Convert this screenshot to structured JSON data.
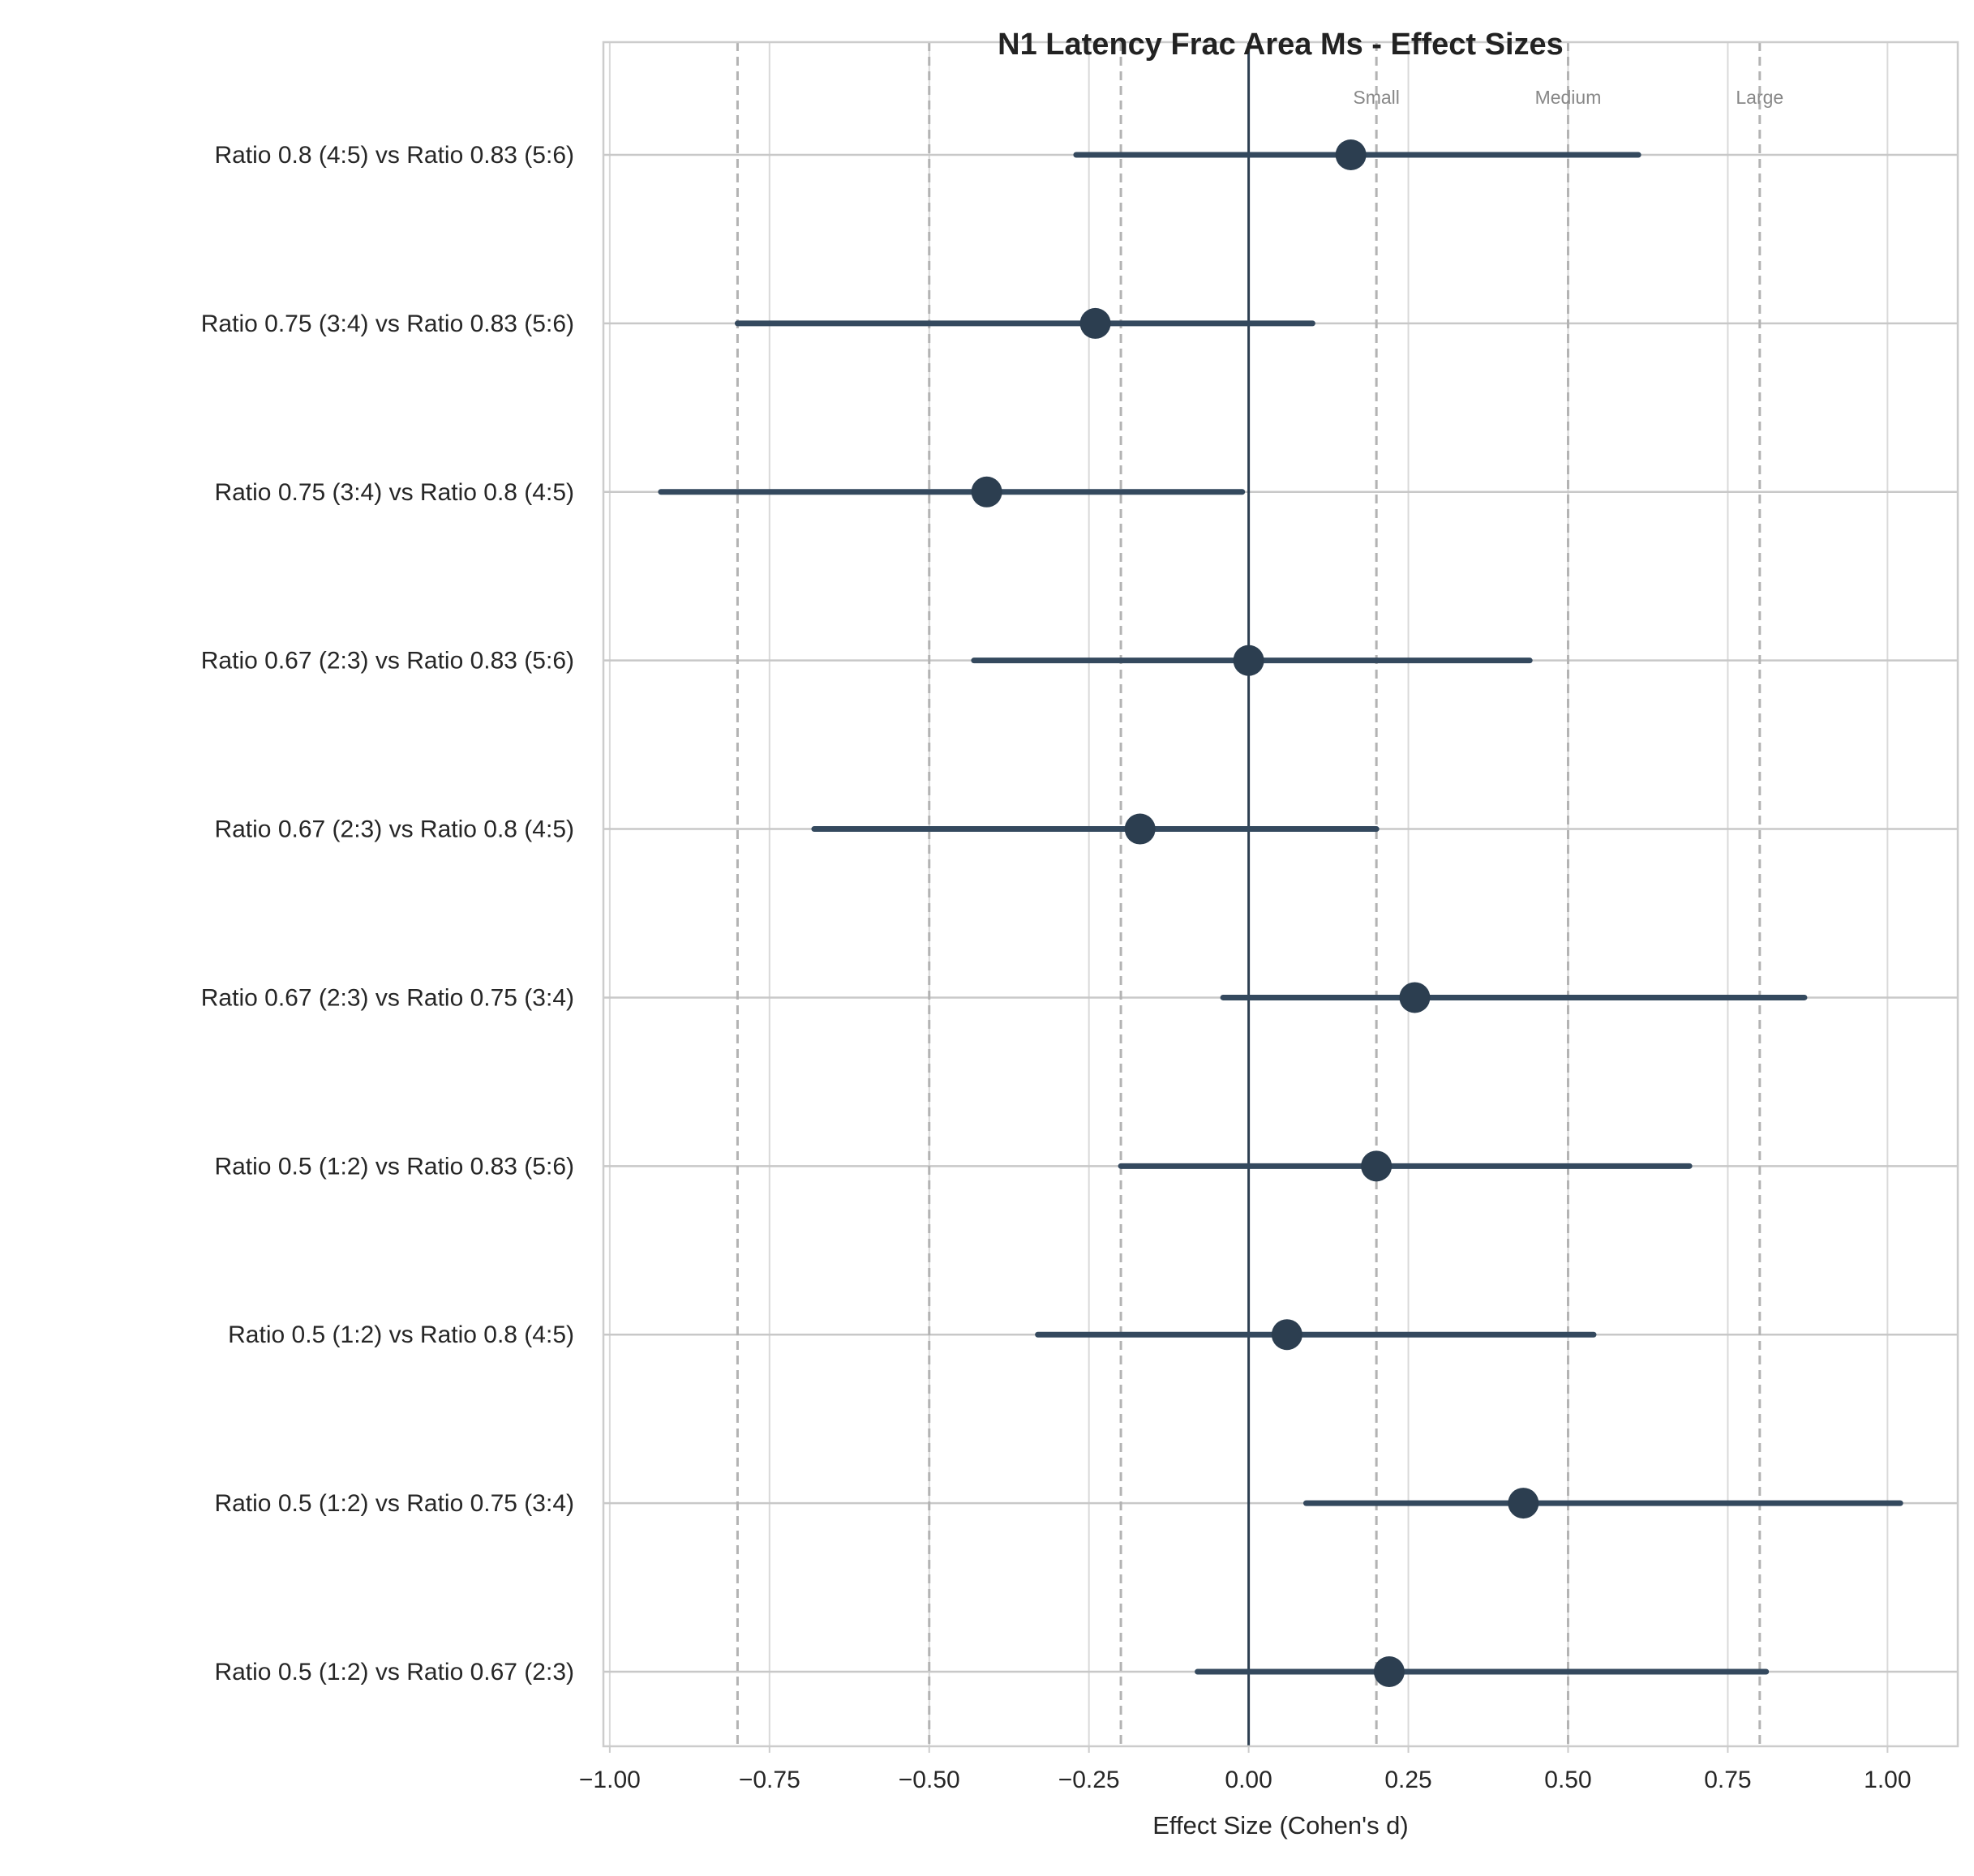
{
  "chart_data": {
    "type": "forest",
    "title": "N1 Latency Frac Area Ms - Effect Sizes",
    "xlabel": "Effect Size (Cohen's d)",
    "ylabel": "",
    "xlim": [
      -1.01,
      1.11
    ],
    "xticks": [
      -1.0,
      -0.75,
      -0.5,
      -0.25,
      0.0,
      0.25,
      0.5,
      0.75,
      1.0
    ],
    "xtick_labels": [
      "−1.00",
      "−0.75",
      "−0.50",
      "−0.25",
      "0.00",
      "0.25",
      "0.50",
      "0.75",
      "1.00"
    ],
    "grid": true,
    "zero_line": 0,
    "thresholds": [
      {
        "value": -0.8,
        "label": ""
      },
      {
        "value": -0.5,
        "label": ""
      },
      {
        "value": -0.2,
        "label": ""
      },
      {
        "value": 0.2,
        "label": "Small"
      },
      {
        "value": 0.5,
        "label": "Medium"
      },
      {
        "value": 0.8,
        "label": "Large"
      }
    ],
    "comparisons": [
      {
        "label": "Ratio 0.8 (4:5) vs Ratio 0.83 (5:6)",
        "d": 0.16,
        "ci": [
          -0.27,
          0.61
        ]
      },
      {
        "label": "Ratio 0.75 (3:4) vs Ratio 0.83 (5:6)",
        "d": -0.24,
        "ci": [
          -0.8,
          0.1
        ]
      },
      {
        "label": "Ratio 0.75 (3:4) vs Ratio 0.8 (4:5)",
        "d": -0.41,
        "ci": [
          -0.92,
          -0.01
        ]
      },
      {
        "label": "Ratio 0.67 (2:3) vs Ratio 0.83 (5:6)",
        "d": 0.0,
        "ci": [
          -0.43,
          0.44
        ]
      },
      {
        "label": "Ratio 0.67 (2:3) vs Ratio 0.8 (4:5)",
        "d": -0.17,
        "ci": [
          -0.68,
          0.2
        ]
      },
      {
        "label": "Ratio 0.67 (2:3) vs Ratio 0.75 (3:4)",
        "d": 0.26,
        "ci": [
          -0.04,
          0.87
        ]
      },
      {
        "label": "Ratio 0.5 (1:2) vs Ratio 0.83 (5:6)",
        "d": 0.2,
        "ci": [
          -0.2,
          0.69
        ]
      },
      {
        "label": "Ratio 0.5 (1:2) vs Ratio 0.8 (4:5)",
        "d": 0.06,
        "ci": [
          -0.33,
          0.54
        ]
      },
      {
        "label": "Ratio 0.5 (1:2) vs Ratio 0.75 (3:4)",
        "d": 0.43,
        "ci": [
          0.09,
          1.02
        ]
      },
      {
        "label": "Ratio 0.5 (1:2) vs Ratio 0.67 (2:3)",
        "d": 0.22,
        "ci": [
          -0.08,
          0.81
        ]
      }
    ],
    "colors": {
      "point": "#2c3e50",
      "ci": "#34495e",
      "zero_line": "#2c3e50",
      "threshold": "#b3b3b3",
      "grid": "#d9d9d9",
      "spine": "#cccccc"
    }
  }
}
